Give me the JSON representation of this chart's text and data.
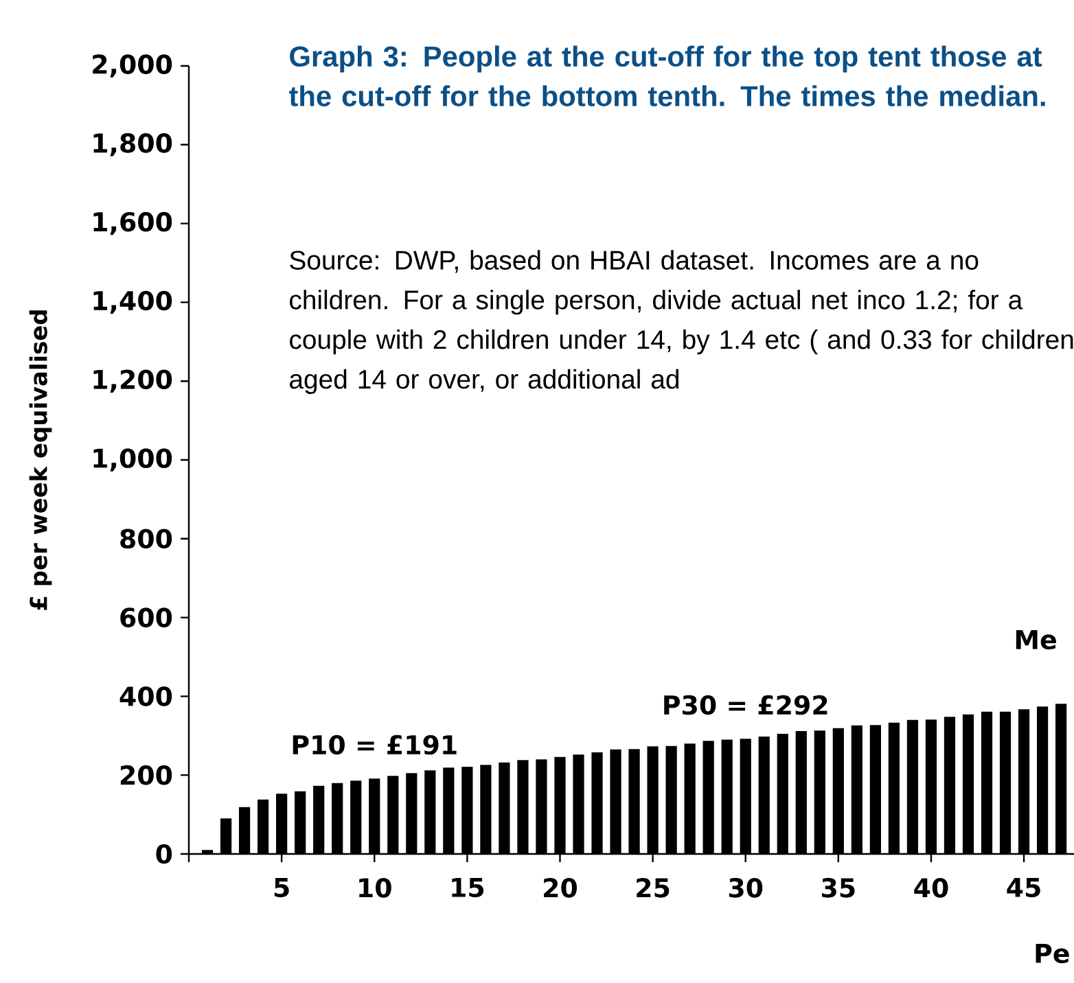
{
  "chart_data": {
    "type": "bar",
    "title": "Graph 3: People at the cut-off for the top tent those at the cut-off for the bottom tenth. The times the median.",
    "xlabel": "Pe",
    "ylabel": "£ per week equivalised",
    "x": [
      1,
      2,
      3,
      4,
      5,
      6,
      7,
      8,
      9,
      10,
      11,
      12,
      13,
      14,
      15,
      16,
      17,
      18,
      19,
      20,
      21,
      22,
      23,
      24,
      25,
      26,
      27,
      28,
      29,
      30,
      31,
      32,
      33,
      34,
      35,
      36,
      37,
      38,
      39,
      40,
      41,
      42,
      43,
      44,
      45,
      46,
      47
    ],
    "values": [
      10,
      90,
      119,
      138,
      153,
      159,
      173,
      180,
      186,
      191,
      198,
      205,
      212,
      219,
      221,
      226,
      232,
      238,
      240,
      246,
      252,
      258,
      265,
      266,
      273,
      274,
      280,
      287,
      290,
      292,
      298,
      305,
      312,
      313,
      319,
      326,
      327,
      333,
      340,
      341,
      348,
      354,
      361,
      361,
      367,
      374,
      381
    ],
    "color": "#000000",
    "xlim": [
      0,
      47.7
    ],
    "xticks": [
      5,
      10,
      15,
      20,
      25,
      30,
      35,
      40,
      45
    ],
    "ylim": [
      0,
      2000
    ],
    "yticks": [
      0,
      200,
      400,
      600,
      800,
      {
        "value": 1000,
        "label": "1,000"
      },
      {
        "value": 1200,
        "label": "1,200"
      },
      {
        "value": 1400,
        "label": "1,400"
      },
      {
        "value": 1600,
        "label": "1,600"
      },
      {
        "value": 1800,
        "label": "1,800"
      },
      {
        "value": 2000,
        "label": "2,000"
      }
    ],
    "annotations": [
      {
        "text": "P10 = £191",
        "x": 10,
        "y": 191
      },
      {
        "text": "P30 = £292",
        "x": 30,
        "y": 292
      },
      "Me",
      "Source: DWP, based on HBAI dataset. Incomes are a no children. For a single person, divide actual net inco 1.2; for a couple with 2 children under 14, by 1.4 etc ( and 0.33 for children aged 14 or over, or additional ad"
    ]
  }
}
